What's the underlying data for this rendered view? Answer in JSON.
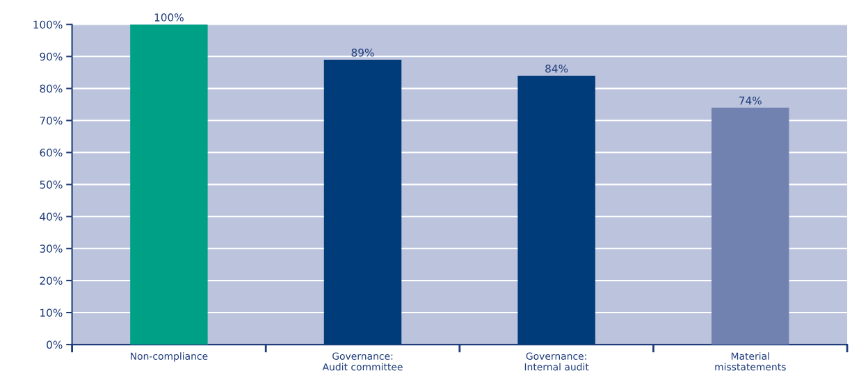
{
  "chart_data": {
    "type": "bar",
    "categories": [
      "Non-compliance",
      "Governance:\nAudit committee",
      "Governance:\nInternal audit",
      "Material\nmisstatements"
    ],
    "values": [
      100,
      89,
      84,
      74
    ],
    "colors": [
      "#00a086",
      "#003b7a",
      "#003b7a",
      "#7282b0"
    ],
    "value_labels": [
      "100%",
      "89%",
      "84%",
      "74%"
    ],
    "ylim": [
      0,
      100
    ],
    "yticks": [
      {
        "value": 0,
        "label": "0%"
      },
      {
        "value": 10,
        "label": "10%"
      },
      {
        "value": 20,
        "label": "20%"
      },
      {
        "value": 30,
        "label": "30%"
      },
      {
        "value": 40,
        "label": "40%"
      },
      {
        "value": 50,
        "label": "50%"
      },
      {
        "value": 60,
        "label": "60%"
      },
      {
        "value": 70,
        "label": "70%"
      },
      {
        "value": 80,
        "label": "80%"
      },
      {
        "value": 90,
        "label": "90%"
      },
      {
        "value": 100,
        "label": "100%"
      }
    ],
    "grid": "y"
  }
}
